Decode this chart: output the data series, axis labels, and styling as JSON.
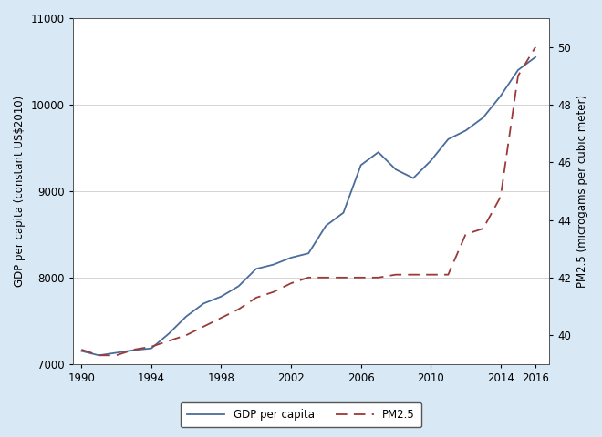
{
  "years": [
    1990,
    1991,
    1992,
    1993,
    1994,
    1995,
    1996,
    1997,
    1998,
    1999,
    2000,
    2001,
    2002,
    2003,
    2004,
    2005,
    2006,
    2007,
    2008,
    2009,
    2010,
    2011,
    2012,
    2013,
    2014,
    2015,
    2016
  ],
  "gdp": [
    7150,
    7100,
    7130,
    7160,
    7180,
    7350,
    7550,
    7700,
    7780,
    7900,
    8100,
    8150,
    8230,
    8280,
    8600,
    8750,
    9300,
    9450,
    9250,
    9150,
    9350,
    9600,
    9700,
    9850,
    10100,
    10400,
    10550
  ],
  "pm25": [
    39.5,
    39.3,
    39.3,
    39.5,
    39.6,
    39.8,
    40.0,
    40.3,
    40.6,
    40.9,
    41.3,
    41.5,
    41.8,
    42.0,
    42.0,
    42.0,
    42.0,
    42.0,
    42.1,
    42.1,
    42.1,
    42.1,
    43.5,
    43.7,
    44.8,
    49.0,
    50.0
  ],
  "gdp_color": "#4a6c9b",
  "pm25_color": "#9b3a3a",
  "figure_bg_color": "#d9e8f5",
  "plot_bg_color": "#ffffff",
  "ylabel_left": "GDP per capita (constant US$2010)",
  "ylabel_right": "PM2.5 (microgams per cubic meter)",
  "ylim_left": [
    7000,
    11000
  ],
  "ylim_right": [
    39,
    51
  ],
  "yticks_left": [
    7000,
    8000,
    9000,
    10000,
    11000
  ],
  "yticks_right": [
    40,
    42,
    44,
    46,
    48,
    50
  ],
  "xticks": [
    1990,
    1994,
    1998,
    2002,
    2006,
    2010,
    2014,
    2016
  ],
  "legend_labels": [
    "GDP per capita",
    "PM2.5"
  ],
  "figsize": [
    6.6,
    4.8
  ],
  "dpi": 100
}
